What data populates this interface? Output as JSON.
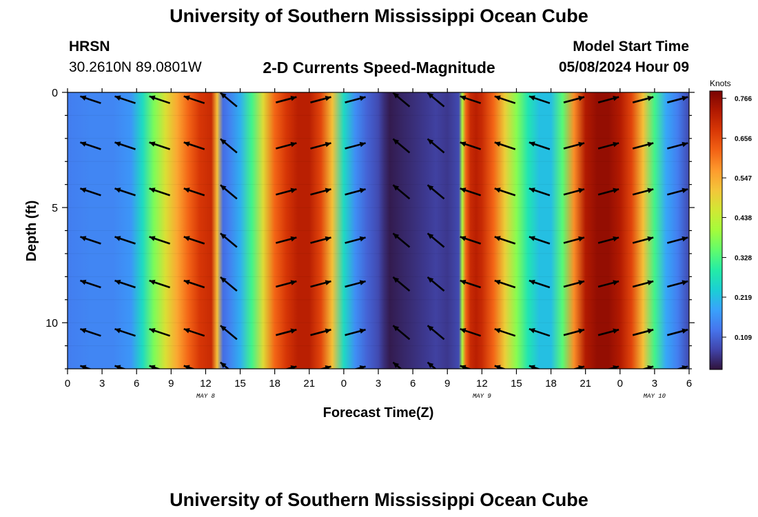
{
  "page": {
    "title": "University of Southern Mississippi Ocean Cube",
    "footer_title": "University of Southern Mississippi Ocean Cube",
    "station": "HRSN",
    "coordinates": "30.2610N  89.0801W",
    "subtitle": "2-D Currents Speed-Magnitude",
    "model_start_label": "Model Start Time",
    "model_start_value": "05/08/2024 Hour 09"
  },
  "chart_data": {
    "type": "heatmap",
    "title": "2-D Currents Speed-Magnitude",
    "xlabel": "Forecast Time(Z)",
    "ylabel": "Depth (ft)",
    "x_tick_labels": [
      "0",
      "3",
      "6",
      "9",
      "12",
      "15",
      "18",
      "21",
      "0",
      "3",
      "6",
      "9",
      "12",
      "15",
      "18",
      "21",
      "0",
      "3",
      "6"
    ],
    "x_range_hours": [
      0,
      54
    ],
    "y_ticks": [
      0,
      5,
      10
    ],
    "y_tick_labels": [
      "0",
      "5",
      "10"
    ],
    "y_range_ft": [
      0,
      12
    ],
    "y_inverted": true,
    "date_labels": [
      {
        "text": "MAY 8",
        "hour": 12
      },
      {
        "text": "MAY 9",
        "hour": 36
      },
      {
        "text": "MAY 10",
        "hour": 51
      }
    ],
    "colorbar": {
      "units": "Knots",
      "min": 0.02,
      "max": 0.786,
      "ticks": [
        0.109,
        0.219,
        0.328,
        0.438,
        0.547,
        0.656,
        0.766
      ],
      "tick_labels": [
        "0.109",
        "0.219",
        "0.328",
        "0.438",
        "0.547",
        "0.656",
        "0.766"
      ],
      "colormap": [
        "#30123b",
        "#4145ab",
        "#4675ed",
        "#39a2fc",
        "#1bcfd4",
        "#24eca6",
        "#61fc6c",
        "#a4fc3b",
        "#d1e834",
        "#f3c63a",
        "#fe9b2d",
        "#f36315",
        "#d93806",
        "#b11901",
        "#7a0403"
      ]
    },
    "speed_profile": {
      "hours": [
        0,
        2,
        4,
        5.5,
        6.5,
        7.5,
        8.5,
        9.5,
        10.5,
        11.5,
        12.5,
        13,
        13.5,
        14,
        15,
        16,
        17,
        18,
        19,
        20,
        21,
        22,
        23,
        24,
        25,
        26,
        27,
        27.5,
        28,
        29,
        30,
        31,
        32,
        33,
        34,
        34.3,
        34.6,
        35,
        35.5,
        36,
        37,
        38,
        39,
        40,
        41,
        42,
        43,
        44,
        45,
        46,
        47,
        48,
        49,
        50,
        51,
        52,
        53,
        54
      ],
      "knots": [
        0.14,
        0.15,
        0.15,
        0.17,
        0.26,
        0.37,
        0.47,
        0.55,
        0.62,
        0.68,
        0.7,
        0.52,
        0.12,
        0.14,
        0.2,
        0.32,
        0.48,
        0.62,
        0.68,
        0.72,
        0.72,
        0.66,
        0.52,
        0.26,
        0.16,
        0.11,
        0.08,
        0.05,
        0.03,
        0.04,
        0.05,
        0.06,
        0.07,
        0.06,
        0.08,
        0.42,
        0.62,
        0.7,
        0.72,
        0.7,
        0.62,
        0.5,
        0.38,
        0.28,
        0.22,
        0.22,
        0.34,
        0.58,
        0.73,
        0.76,
        0.76,
        0.73,
        0.66,
        0.52,
        0.32,
        0.19,
        0.14,
        0.08
      ]
    },
    "vector_rows_depth_ft": [
      0.2,
      2.2,
      4.2,
      6.3,
      8.2,
      10.3,
      11.9
    ],
    "vector_columns": [
      {
        "hour": 2,
        "dir": "W"
      },
      {
        "hour": 5,
        "dir": "W"
      },
      {
        "hour": 8,
        "dir": "W"
      },
      {
        "hour": 11,
        "dir": "W"
      },
      {
        "hour": 14,
        "dir": "SW"
      },
      {
        "hour": 19,
        "dir": "E"
      },
      {
        "hour": 22,
        "dir": "E"
      },
      {
        "hour": 25,
        "dir": "E"
      },
      {
        "hour": 29,
        "dir": "SW"
      },
      {
        "hour": 32,
        "dir": "SW"
      },
      {
        "hour": 35,
        "dir": "W"
      },
      {
        "hour": 38,
        "dir": "W"
      },
      {
        "hour": 41,
        "dir": "W"
      },
      {
        "hour": 44,
        "dir": "E"
      },
      {
        "hour": 47,
        "dir": "E"
      },
      {
        "hour": 50,
        "dir": "E"
      },
      {
        "hour": 53,
        "dir": "E"
      }
    ]
  }
}
